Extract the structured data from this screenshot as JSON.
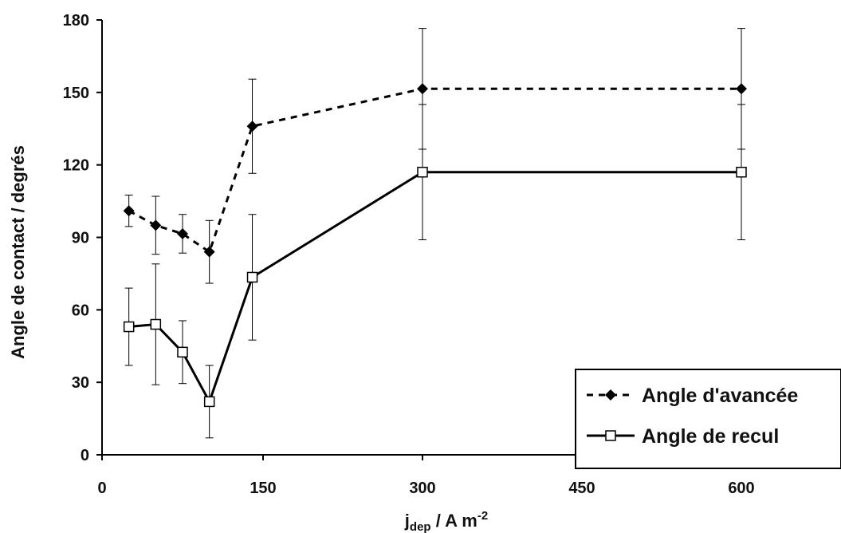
{
  "chart_data": {
    "type": "line",
    "x_tick_labels": [
      "0",
      "150",
      "300",
      "450",
      "600"
    ],
    "y_tick_labels": [
      "0",
      "30",
      "60",
      "90",
      "120",
      "150",
      "180"
    ],
    "ylim": [
      0,
      180
    ],
    "xlabel_main": "j",
    "xlabel_sub": "dep",
    "xlabel_rest": " / A m",
    "xlabel_sup": "-2",
    "ylabel": "Angle de contact / degrés",
    "grid": false,
    "legend_position": "bottom-right",
    "series": [
      {
        "name": "Angle d'avancée",
        "marker": "filled-diamond",
        "line_style": "dashed",
        "color": "#000000",
        "x": [
          25,
          50,
          75,
          100,
          140,
          300,
          600
        ],
        "y": [
          101,
          95,
          91.5,
          84,
          136,
          151.5,
          151.5
        ],
        "err": [
          6.5,
          12,
          8,
          13,
          19.5,
          25,
          25
        ]
      },
      {
        "name": "Angle de recul",
        "marker": "open-square",
        "line_style": "solid",
        "color": "#000000",
        "x": [
          25,
          50,
          75,
          100,
          140,
          300,
          600
        ],
        "y": [
          53,
          54,
          42.5,
          22,
          73.5,
          117,
          117
        ],
        "err": [
          16,
          25,
          13,
          15,
          26,
          28,
          28
        ]
      }
    ]
  }
}
